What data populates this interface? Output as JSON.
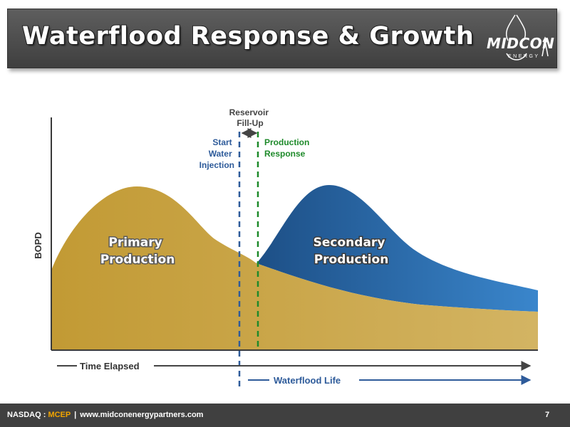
{
  "header": {
    "title": "Waterflood Response & Growth",
    "logo_word": "MIDCON",
    "logo_sub": "ENERGY"
  },
  "diagram": {
    "y_axis_label": "BOPD",
    "primary_label": [
      "Primary",
      "Production"
    ],
    "secondary_label": [
      "Secondary",
      "Production"
    ],
    "fillup_label": [
      "Reservoir",
      "Fill-Up"
    ],
    "start_injection_label": [
      "Start",
      "Water",
      "Injection"
    ],
    "production_response_label": [
      "Production",
      "Response"
    ],
    "time_elapsed_label": "Time Elapsed",
    "waterflood_life_label": "Waterflood Life"
  },
  "colors": {
    "primary_fill": "#c9a440",
    "secondary_fill": "#2d6aa8",
    "start_injection": "#2e5b9a",
    "production_response": "#1e8a2a",
    "footer_ticker": "#f0a400"
  },
  "footer": {
    "exchange": "NASDAQ : ",
    "ticker": "MCEP",
    "separator": "|",
    "website": "www.midconenergypartners.com",
    "page_number": "7"
  }
}
